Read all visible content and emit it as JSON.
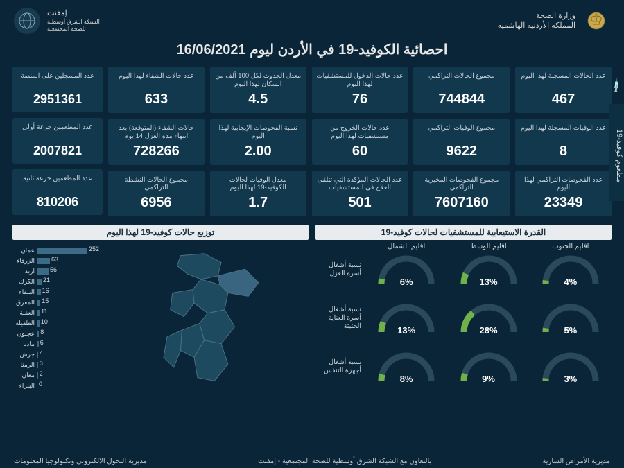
{
  "colors": {
    "bg": "#0a2538",
    "card": "#12384e",
    "bar": "#3d6a85",
    "gauge_track": "#2a4a5c",
    "gauge_fill": "#6fb24a",
    "text": "#d4d4d4",
    "title_bar_bg": "#e8ecef",
    "title_bar_fg": "#1a3040"
  },
  "header": {
    "ministry_l1": "وزارة الصحة",
    "ministry_l2": "المملكة الأردنية الهاشمية",
    "emphnet_l1": "إمفنت",
    "emphnet_l2": "الشبكة الشرق أوسطية",
    "emphnet_l3": "للصحة المجتمعية"
  },
  "title": "احصائية الكوفيد-19 في الأردن ليوم   16/06/2021",
  "side_tab": "مطعوم كوفيد-19",
  "stats": [
    {
      "lbl": "عدد الحالات المسجلة لهذا اليوم",
      "val": "467"
    },
    {
      "lbl": "مجموع الحالات التراكمي",
      "val": "744844"
    },
    {
      "lbl": "عدد حالات الدخول للمستشفيات لهذا اليوم",
      "val": "76"
    },
    {
      "lbl": "معدل الحدوث لكل 100 ألف من السكان لهذا اليوم",
      "val": "4.5"
    },
    {
      "lbl": "عدد حالات الشفاء لهذا اليوم",
      "val": "633"
    },
    {
      "lbl": "عدد الوفيات المسجلة لهذا اليوم",
      "val": "8"
    },
    {
      "lbl": "مجموع الوفيات التراكمي",
      "val": "9622"
    },
    {
      "lbl": "عدد حالات الخروج من مستشفيات لهذا اليوم",
      "val": "60"
    },
    {
      "lbl": "نسبة الفحوصات الإيجابية لهذا اليوم",
      "val": "2.00"
    },
    {
      "lbl": "حالات الشفاء (المتوقعة) بعد انتهاء مدة العزل 14 يوم",
      "val": "728266"
    },
    {
      "lbl": "عدد الفحوصات التراكمي لهذا اليوم",
      "val": "23349"
    },
    {
      "lbl": "مجموع الفحوصات المخبرية التراكمي",
      "val": "7607160"
    },
    {
      "lbl": "عدد الحالات المؤكدة التي تتلقى العلاج في المستشفيات",
      "val": "501"
    },
    {
      "lbl": "معدل الوفيات لحالات الكوفيد-19 لهذا اليوم",
      "val": "1.7"
    },
    {
      "lbl": "مجموع الحالات النشطة التراكمي",
      "val": "6956"
    }
  ],
  "vaccine": [
    {
      "lbl": "عدد المسجلين على المنصة",
      "val": "2951361"
    },
    {
      "lbl": "عدد المطعمين جرعة أولى",
      "val": "2007821"
    },
    {
      "lbl": "عدد المطعمين جرعة ثانية",
      "val": "810206"
    }
  ],
  "capacity": {
    "title": "القدرة الاستيعابية للمستشفيات لحالات كوفيد-19",
    "regions": [
      "اقليم الشمال",
      "اقليم الوسط",
      "اقليم الجنوب"
    ],
    "rows": [
      {
        "lbl": "نسبة أشغال أسرة العزل",
        "vals": [
          6,
          13,
          4
        ]
      },
      {
        "lbl": "نسبة أشغال أسرة العناية الحثيثة",
        "vals": [
          13,
          28,
          5
        ]
      },
      {
        "lbl": "نسبة أشغال أجهزة التنفس",
        "vals": [
          8,
          9,
          3
        ]
      }
    ]
  },
  "distribution": {
    "title": "توزيع حالات كوفيد-19 لهذا اليوم",
    "max": 252,
    "items": [
      {
        "name": "عمان",
        "val": 252
      },
      {
        "name": "الزرقاء",
        "val": 63
      },
      {
        "name": "اربد",
        "val": 56
      },
      {
        "name": "الكرك",
        "val": 21
      },
      {
        "name": "البلقاء",
        "val": 16
      },
      {
        "name": "المفرق",
        "val": 15
      },
      {
        "name": "العقبة",
        "val": 11
      },
      {
        "name": "الطفيلة",
        "val": 10
      },
      {
        "name": "عجلون",
        "val": 8
      },
      {
        "name": "مادبا",
        "val": 6
      },
      {
        "name": "جرش",
        "val": 4
      },
      {
        "name": "الرمثا",
        "val": 3
      },
      {
        "name": "معان",
        "val": 2
      },
      {
        "name": "البتراء",
        "val": 0
      }
    ]
  },
  "footer": {
    "right": "مديرية الأمراض السارية",
    "center": "بالتعاون مع الشبكة الشرق أوسطية للصحة المجتمعية - إمفنت",
    "left": "مديرية التحول الالكتروني وتكنولوجيا المعلومات"
  }
}
